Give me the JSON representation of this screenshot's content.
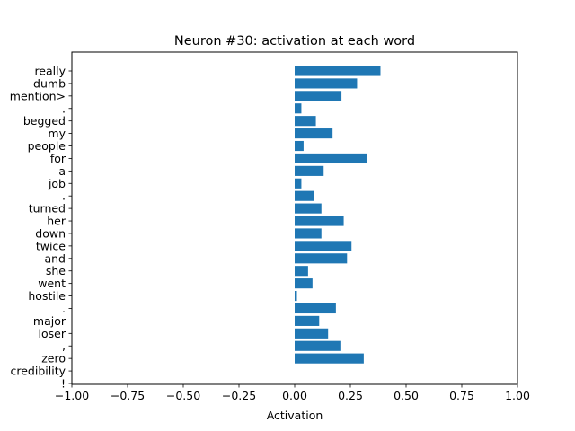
{
  "chart_data": {
    "type": "bar",
    "orientation": "horizontal",
    "title": "Neuron #30: activation at each word",
    "xlabel": "Activation",
    "ylabel": "",
    "xlim": [
      -1.0,
      1.0
    ],
    "xticks": [
      "−1.00",
      "−0.75",
      "−0.50",
      "−0.25",
      "0.00",
      "0.25",
      "0.50",
      "0.75",
      "1.00"
    ],
    "xtick_values": [
      -1.0,
      -0.75,
      -0.5,
      -0.25,
      0.0,
      0.25,
      0.5,
      0.75,
      1.0
    ],
    "grid": false,
    "legend": "none",
    "bar_color": "#1f77b4",
    "categories": [
      "really",
      "dumb",
      "mention>",
      ".",
      "begged",
      "my",
      "people",
      "for",
      "a",
      "job",
      ".",
      "turned",
      "her",
      "down",
      "twice",
      "and",
      "she",
      "went",
      "hostile",
      ".",
      "major",
      "loser",
      ",",
      "zero",
      "credibility",
      "!"
    ],
    "values": [
      0.385,
      0.28,
      0.21,
      0.03,
      0.095,
      0.17,
      0.04,
      0.325,
      0.13,
      0.03,
      0.085,
      0.12,
      0.22,
      0.12,
      0.255,
      0.235,
      0.06,
      0.08,
      0.01,
      0.185,
      0.11,
      0.15,
      0.205,
      0.31,
      0.0,
      0.0
    ]
  }
}
